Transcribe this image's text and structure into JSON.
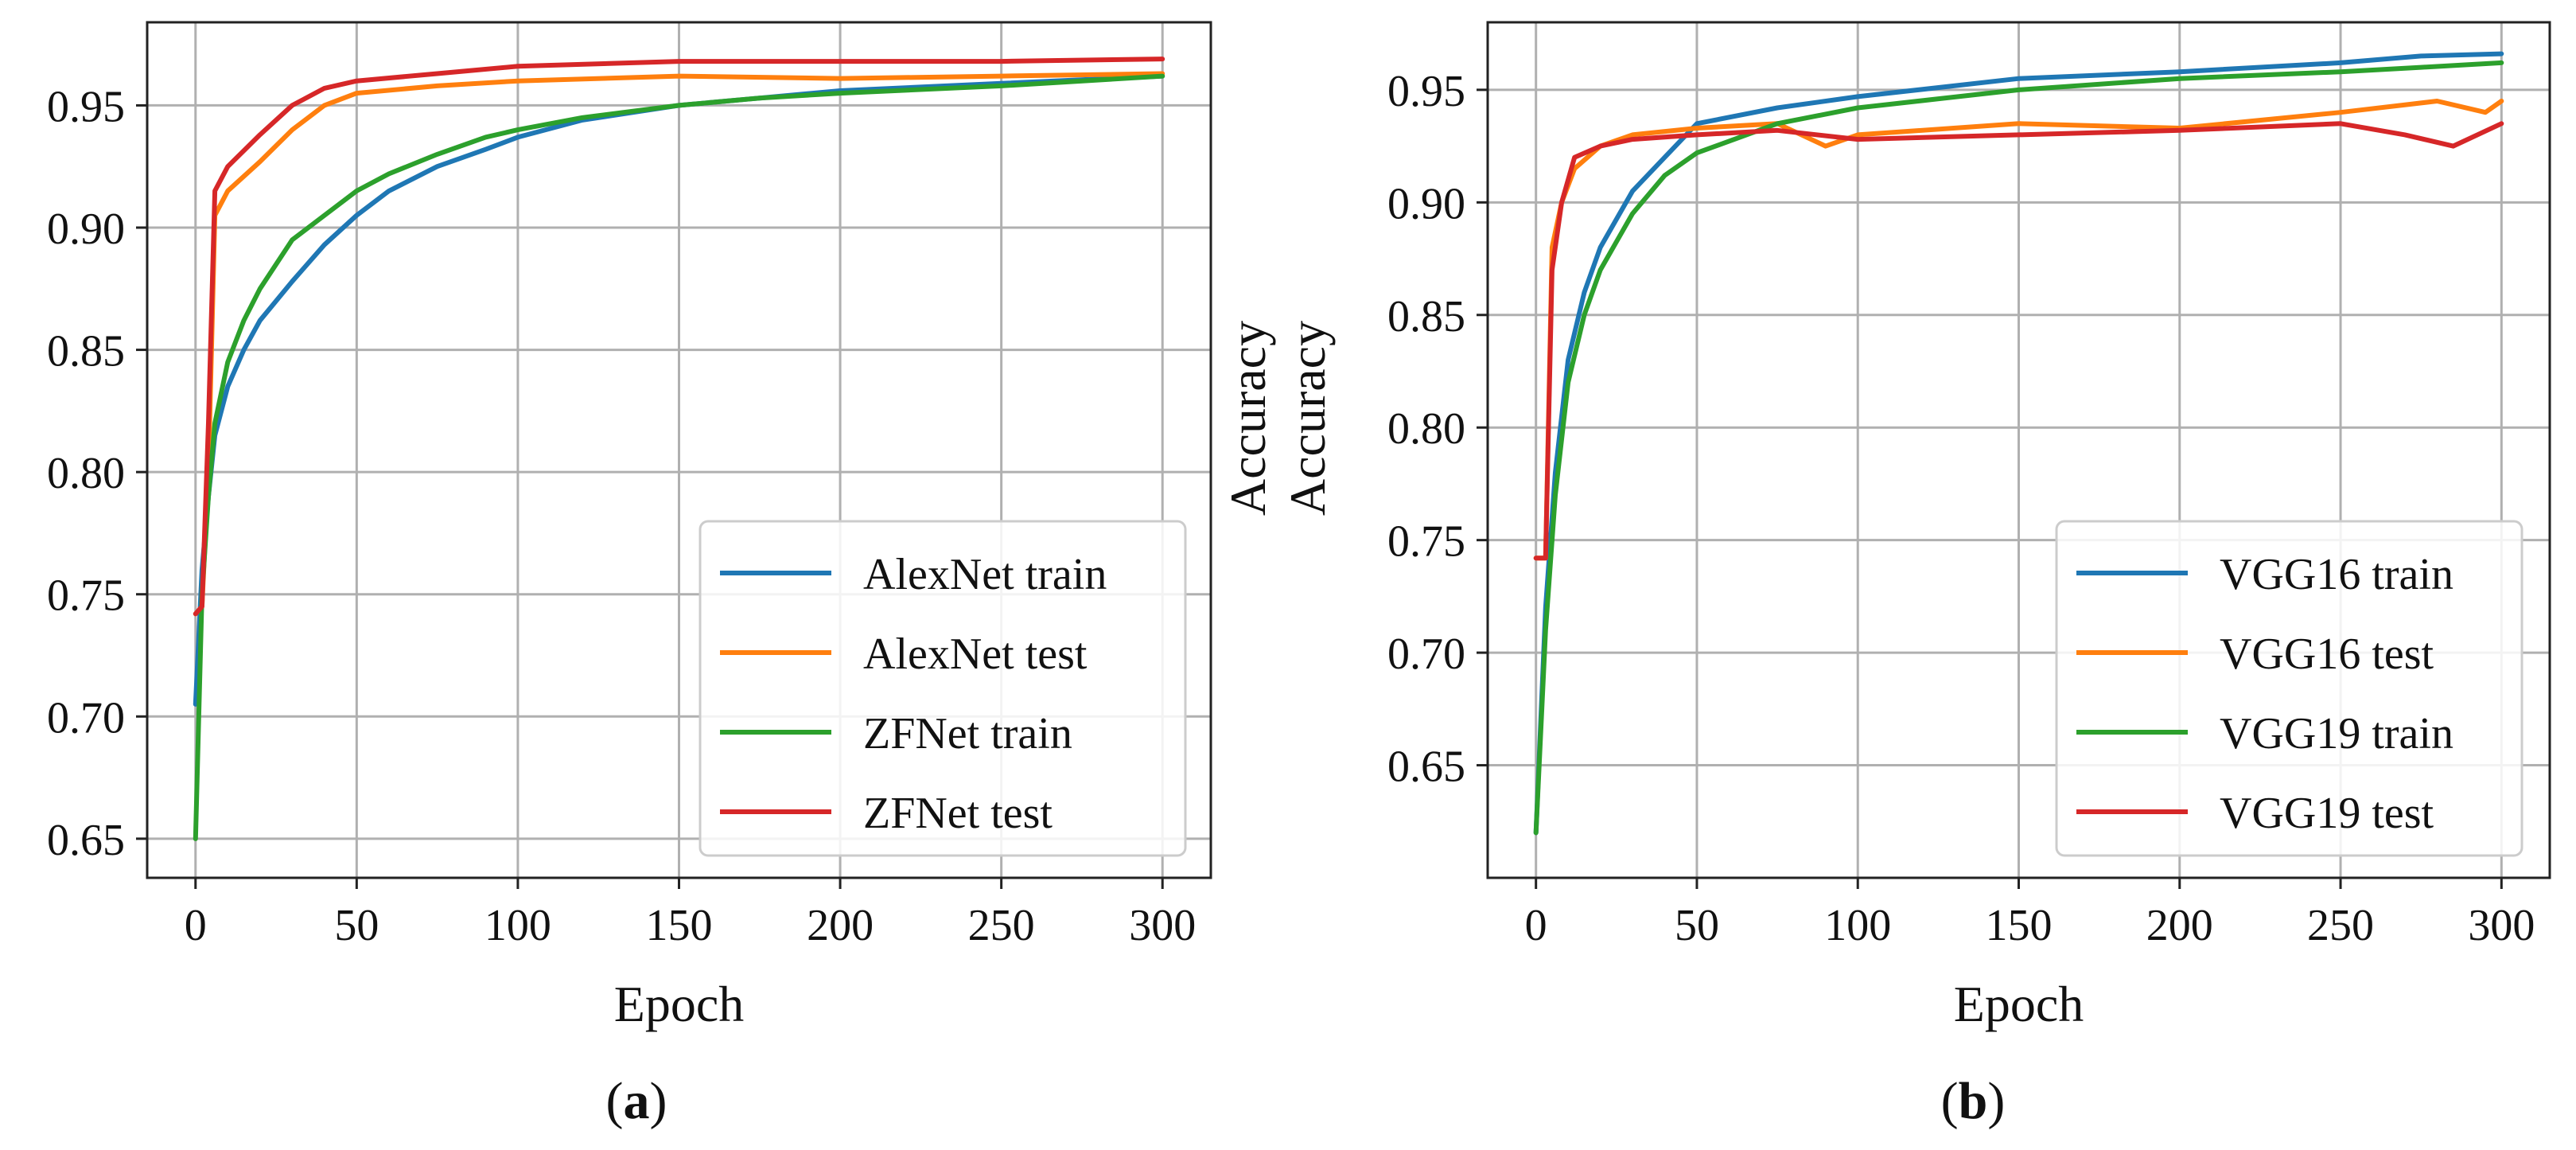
{
  "chart_data": [
    {
      "panel_label": "a",
      "type": "line",
      "title": "",
      "xlabel": "Epoch",
      "ylabel": "Accuracy",
      "xlim": [
        -15,
        315
      ],
      "ylim": [
        0.634,
        0.984
      ],
      "xticks": [
        0,
        50,
        100,
        150,
        200,
        250,
        300
      ],
      "yticks": [
        0.65,
        0.7,
        0.75,
        0.8,
        0.85,
        0.9,
        0.95
      ],
      "ytick_labels": [
        "0.65",
        "0.70",
        "0.75",
        "0.80",
        "0.85",
        "0.90",
        "0.95"
      ],
      "grid": true,
      "legend_position": "lower-right",
      "series": [
        {
          "name": "AlexNet train",
          "color": "#1f77b4",
          "x": [
            0,
            2,
            4,
            6,
            10,
            15,
            20,
            30,
            40,
            50,
            60,
            75,
            90,
            100,
            120,
            150,
            175,
            200,
            250,
            300
          ],
          "y": [
            0.705,
            0.76,
            0.79,
            0.815,
            0.835,
            0.85,
            0.862,
            0.878,
            0.893,
            0.905,
            0.915,
            0.925,
            0.932,
            0.937,
            0.944,
            0.95,
            0.953,
            0.956,
            0.959,
            0.962
          ]
        },
        {
          "name": "AlexNet test",
          "color": "#ff7f0e",
          "x": [
            0,
            2,
            4,
            6,
            10,
            20,
            30,
            40,
            50,
            75,
            100,
            150,
            200,
            250,
            300
          ],
          "y": [
            0.742,
            0.745,
            0.8,
            0.905,
            0.915,
            0.927,
            0.94,
            0.95,
            0.955,
            0.958,
            0.96,
            0.962,
            0.961,
            0.962,
            0.963
          ]
        },
        {
          "name": "ZFNet train",
          "color": "#2ca02c",
          "x": [
            0,
            2,
            4,
            6,
            10,
            15,
            20,
            30,
            40,
            50,
            60,
            75,
            90,
            100,
            120,
            150,
            175,
            200,
            250,
            300
          ],
          "y": [
            0.65,
            0.75,
            0.79,
            0.82,
            0.845,
            0.862,
            0.875,
            0.895,
            0.905,
            0.915,
            0.922,
            0.93,
            0.937,
            0.94,
            0.945,
            0.95,
            0.953,
            0.955,
            0.958,
            0.962
          ]
        },
        {
          "name": "ZFNet test",
          "color": "#d62728",
          "x": [
            0,
            2,
            4,
            6,
            10,
            20,
            30,
            40,
            50,
            75,
            100,
            150,
            200,
            250,
            300
          ],
          "y": [
            0.742,
            0.745,
            0.82,
            0.915,
            0.925,
            0.938,
            0.95,
            0.957,
            0.96,
            0.963,
            0.966,
            0.968,
            0.968,
            0.968,
            0.969
          ]
        }
      ]
    },
    {
      "panel_label": "b",
      "type": "line",
      "title": "",
      "xlabel": "Epoch",
      "ylabel": "Accuracy",
      "xlim": [
        -15,
        315
      ],
      "ylim": [
        0.6,
        0.98
      ],
      "xticks": [
        0,
        50,
        100,
        150,
        200,
        250,
        300
      ],
      "yticks": [
        0.65,
        0.7,
        0.75,
        0.8,
        0.85,
        0.9,
        0.95
      ],
      "ytick_labels": [
        "0.65",
        "0.70",
        "0.75",
        "0.80",
        "0.85",
        "0.90",
        "0.95"
      ],
      "grid": true,
      "legend_position": "lower-right",
      "series": [
        {
          "name": "VGG16 train",
          "color": "#1f77b4",
          "x": [
            0,
            3,
            6,
            10,
            15,
            20,
            30,
            40,
            50,
            75,
            100,
            150,
            200,
            250,
            275,
            300
          ],
          "y": [
            0.62,
            0.72,
            0.78,
            0.83,
            0.86,
            0.88,
            0.905,
            0.92,
            0.935,
            0.942,
            0.947,
            0.955,
            0.958,
            0.962,
            0.965,
            0.966
          ]
        },
        {
          "name": "VGG16 test",
          "color": "#ff7f0e",
          "x": [
            0,
            3,
            5,
            8,
            12,
            20,
            30,
            50,
            75,
            90,
            100,
            150,
            200,
            250,
            280,
            295,
            300
          ],
          "y": [
            0.742,
            0.742,
            0.88,
            0.9,
            0.915,
            0.925,
            0.93,
            0.933,
            0.935,
            0.925,
            0.93,
            0.935,
            0.933,
            0.94,
            0.945,
            0.94,
            0.945
          ]
        },
        {
          "name": "VGG19 train",
          "color": "#2ca02c",
          "x": [
            0,
            3,
            6,
            10,
            15,
            20,
            30,
            40,
            50,
            75,
            100,
            150,
            200,
            250,
            275,
            300
          ],
          "y": [
            0.62,
            0.71,
            0.77,
            0.82,
            0.85,
            0.87,
            0.895,
            0.912,
            0.922,
            0.935,
            0.942,
            0.95,
            0.955,
            0.958,
            0.96,
            0.962
          ]
        },
        {
          "name": "VGG19 test",
          "color": "#d62728",
          "x": [
            0,
            3,
            5,
            8,
            12,
            20,
            30,
            50,
            75,
            100,
            150,
            200,
            250,
            270,
            285,
            300
          ],
          "y": [
            0.742,
            0.742,
            0.87,
            0.9,
            0.92,
            0.925,
            0.928,
            0.93,
            0.932,
            0.928,
            0.93,
            0.932,
            0.935,
            0.93,
            0.925,
            0.935
          ]
        }
      ]
    }
  ]
}
